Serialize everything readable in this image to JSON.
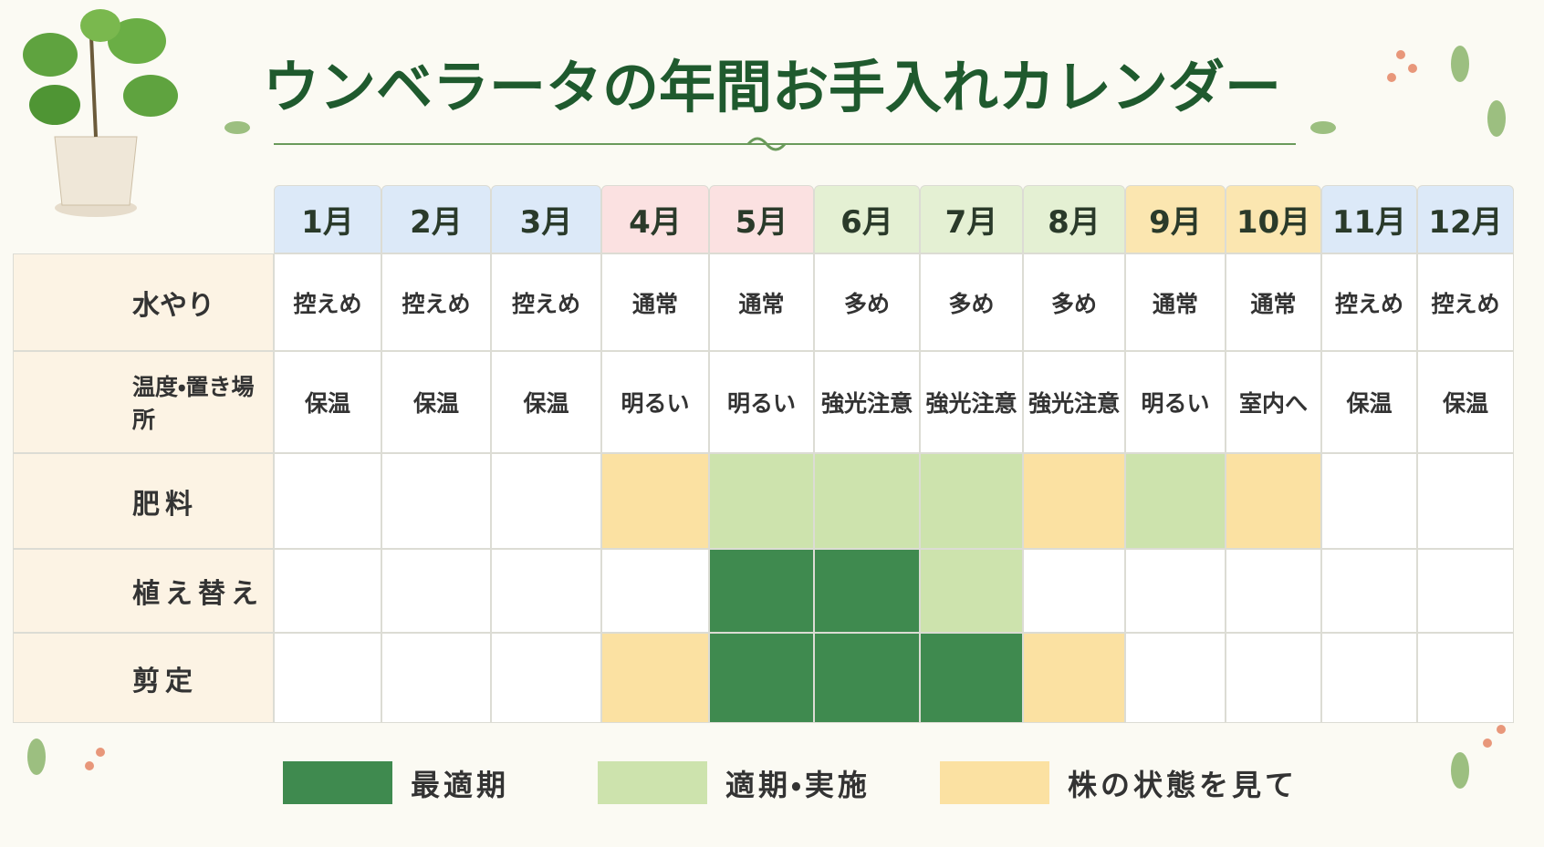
{
  "title": "ウンベラータの年間お手入れカレンダー",
  "months": [
    {
      "label": "1月",
      "color": "#dce9f8"
    },
    {
      "label": "2月",
      "color": "#dce9f8"
    },
    {
      "label": "3月",
      "color": "#dce9f8"
    },
    {
      "label": "4月",
      "color": "#fbe1e1"
    },
    {
      "label": "5月",
      "color": "#fbe1e1"
    },
    {
      "label": "6月",
      "color": "#e4f0d3"
    },
    {
      "label": "7月",
      "color": "#e4f0d3"
    },
    {
      "label": "8月",
      "color": "#e4f0d3"
    },
    {
      "label": "9月",
      "color": "#fbe6b0"
    },
    {
      "label": "10月",
      "color": "#fbe6b0"
    },
    {
      "label": "11月",
      "color": "#dce9f8"
    },
    {
      "label": "12月",
      "color": "#dce9f8"
    }
  ],
  "legend": [
    {
      "label": "最適期",
      "color": "#3f8a4f"
    },
    {
      "label": "適期・実施",
      "color": "#cde3ad"
    },
    {
      "label": "株の状態を見て",
      "color": "#fbe1a2"
    }
  ],
  "rows": [
    {
      "label": "水やり",
      "cells": [
        "控えめ",
        "控えめ",
        "控えめ",
        "通常",
        "通常",
        "多め",
        "多め",
        "多め",
        "通常",
        "通常",
        "控えめ",
        "控えめ"
      ]
    },
    {
      "label": "温度・置き場所",
      "cells": [
        "保温",
        "保温",
        "保温",
        "明るい",
        "明るい",
        "強光注意",
        "強光注意",
        "強光注意",
        "明るい",
        "室内へ",
        "保温",
        "保温"
      ]
    },
    {
      "label": "肥料",
      "marks": [
        null,
        null,
        null,
        2,
        1,
        1,
        1,
        2,
        1,
        2,
        null,
        null
      ]
    },
    {
      "label": "植え替え",
      "marks": [
        null,
        null,
        null,
        null,
        0,
        0,
        1,
        null,
        null,
        null,
        null,
        null
      ]
    },
    {
      "label": "剪定",
      "marks": [
        null,
        null,
        null,
        2,
        0,
        0,
        0,
        2,
        null,
        null,
        null,
        null
      ]
    }
  ]
}
